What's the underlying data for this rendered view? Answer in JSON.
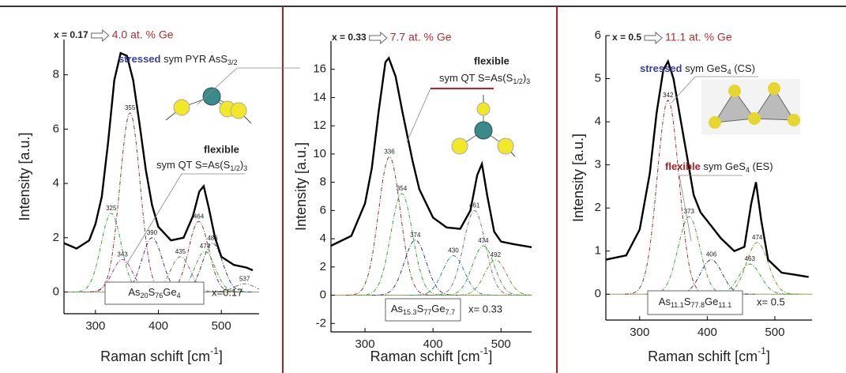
{
  "chart_data": [
    {
      "type": "line",
      "header": {
        "x_value": "x = 0.17",
        "composition": "4.0 at. % Ge"
      },
      "xlabel": [
        "Raman schift  [cm",
        "-1",
        "]"
      ],
      "ylabel": "Intensity  [a.u.]",
      "xlim": [
        250,
        560
      ],
      "ylim": [
        -0.8,
        9.3
      ],
      "xticks": [
        300,
        400,
        500
      ],
      "yticks": [
        0,
        2,
        4,
        6,
        8
      ],
      "x": [
        250,
        270,
        290,
        300,
        310,
        320,
        330,
        340,
        350,
        360,
        370,
        380,
        390,
        400,
        420,
        440,
        455,
        465,
        472,
        480,
        490,
        500,
        520,
        540,
        550
      ],
      "series": [
        {
          "color": "#000000",
          "values": [
            1.8,
            1.6,
            1.9,
            2.5,
            3.5,
            5.5,
            7.8,
            8.8,
            8.7,
            7.8,
            6.2,
            4.5,
            3.2,
            2.4,
            1.9,
            2.0,
            2.8,
            3.7,
            3.9,
            3.1,
            2.0,
            1.3,
            1.0,
            0.9,
            0.8
          ]
        }
      ],
      "peaks": {
        "x": [
          325,
          343,
          355,
          390,
          435,
          464,
          474,
          486,
          537
        ],
        "y": [
          2.9,
          1.2,
          6.6,
          2.0,
          1.3,
          2.6,
          1.5,
          1.8,
          0.3
        ],
        "colors": [
          "#3aa83a",
          "#a040a0",
          "#8b3a3a",
          "#3a3a70",
          "#777777",
          "#8b3a3a",
          "#3aa83a",
          "#3a3a70",
          "#777777"
        ]
      },
      "annotations": [
        {
          "emphasis": "stressed",
          "emphasis_color": "#3b3ea0",
          "parts": [
            "sym PYR AsS",
            "3/2"
          ]
        },
        {
          "emphasis": "flexible",
          "emphasis_color": "#b02020",
          "parts": [
            "sym QT S=As(S",
            "1/2",
            ")",
            "3"
          ]
        }
      ],
      "sample": {
        "formula": [
          "As",
          "20",
          "S",
          "76",
          "Ge",
          "4"
        ],
        "x_value": "x=0.17"
      }
    },
    {
      "type": "line",
      "header": {
        "x_value": "x = 0.33",
        "composition": "7.7 at. % Ge"
      },
      "xlabel": [
        "Raman schift  [cm",
        "-1",
        "]"
      ],
      "ylabel": "Intensity  [a.u.]",
      "xlim": [
        250,
        545
      ],
      "ylim": [
        -2.6,
        18
      ],
      "xticks": [
        300,
        400,
        500
      ],
      "yticks": [
        -2,
        0,
        2,
        4,
        6,
        8,
        10,
        12,
        14,
        16
      ],
      "x": [
        250,
        280,
        300,
        310,
        320,
        330,
        335,
        345,
        355,
        370,
        380,
        400,
        420,
        440,
        455,
        465,
        472,
        480,
        490,
        500,
        520,
        545
      ],
      "series": [
        {
          "color": "#000000",
          "values": [
            3.5,
            4.2,
            6.5,
            9.0,
            13.0,
            16.5,
            16.8,
            15.5,
            13.0,
            9.5,
            7.5,
            5.5,
            4.8,
            4.7,
            6.0,
            8.5,
            9.3,
            7.0,
            4.5,
            3.8,
            3.6,
            3.4
          ]
        }
      ],
      "peaks": {
        "x": [
          336,
          354,
          374,
          430,
          461,
          474,
          492
        ],
        "y": [
          9.8,
          7.2,
          3.9,
          2.8,
          6.0,
          3.5,
          2.5
        ],
        "colors": [
          "#8b3a3a",
          "#3aa83a",
          "#3a3a70",
          "#3a8a8a",
          "#777777",
          "#3aa83a",
          "#6a9a3a"
        ]
      },
      "annotations": [
        {
          "emphasis": "flexible",
          "emphasis_color": "#b02020",
          "parts": [
            "sym QT S=As(S",
            "1/2",
            ")",
            "3"
          ]
        }
      ],
      "sample": {
        "formula": [
          "As",
          "15.3",
          "S",
          "77",
          "Ge",
          "7.7"
        ],
        "x_value": "x= 0.33"
      }
    },
    {
      "type": "line",
      "header": {
        "x_value": "x = 0.5",
        "composition": "11.1 at. % Ge"
      },
      "xlabel": [
        "Raman schift  [cm",
        "-1",
        "]"
      ],
      "ylabel": "Intensity  [a.u.]",
      "xlim": [
        250,
        555
      ],
      "ylim": [
        -0.6,
        6
      ],
      "xticks": [
        300,
        400,
        500
      ],
      "yticks": [
        0,
        1,
        2,
        3,
        4,
        5,
        6
      ],
      "x": [
        250,
        280,
        300,
        315,
        325,
        335,
        342,
        350,
        360,
        370,
        380,
        390,
        400,
        420,
        440,
        455,
        465,
        472,
        480,
        490,
        510,
        530,
        550
      ],
      "series": [
        {
          "color": "#000000",
          "values": [
            0.8,
            0.9,
            1.5,
            2.8,
            4.2,
            5.2,
            5.4,
            5.0,
            4.1,
            3.2,
            2.3,
            1.9,
            1.7,
            1.3,
            1.0,
            1.1,
            2.1,
            2.6,
            1.7,
            0.8,
            0.5,
            0.45,
            0.4
          ]
        }
      ],
      "peaks": {
        "x": [
          342,
          373,
          406,
          463,
          474
        ],
        "y": [
          4.5,
          1.8,
          0.8,
          0.7,
          1.2
        ],
        "colors": [
          "#8b3a3a",
          "#3aa83a",
          "#3a3a70",
          "#3aa83a",
          "#8a8a30"
        ]
      },
      "annotations": [
        {
          "emphasis": "stressed",
          "emphasis_color": "#3b3ea0",
          "parts": [
            "sym GeS",
            "4",
            " (CS)"
          ]
        },
        {
          "emphasis": "flexible",
          "emphasis_color": "#b02020",
          "parts": [
            "sym GeS",
            "4",
            " (ES)"
          ]
        }
      ],
      "sample": {
        "formula": [
          "As",
          "11.1",
          "S",
          "77.8",
          "Ge",
          "11.1"
        ],
        "x_value": "x= 0.5"
      }
    }
  ]
}
